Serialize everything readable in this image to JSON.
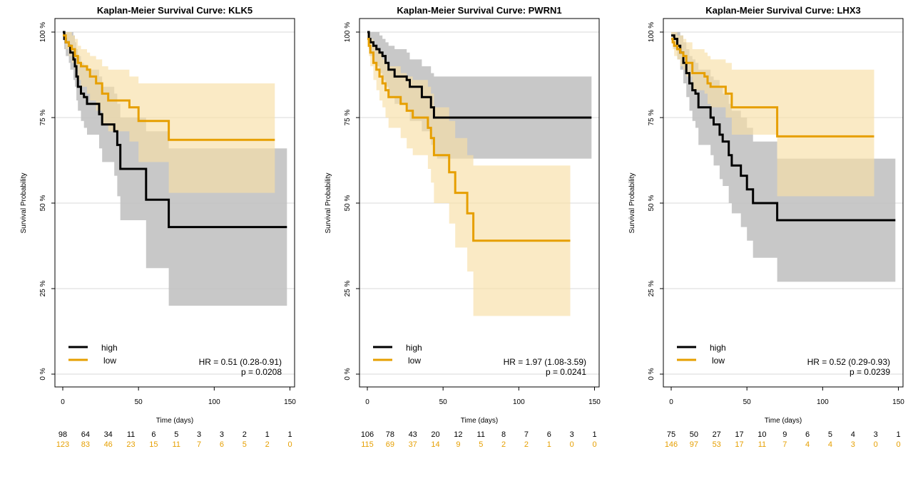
{
  "colors": {
    "high": "#000000",
    "low": "#E69F00",
    "high_band": "#BEBEBE",
    "low_band": "#F8DFA6",
    "grid": "#D9D9D9",
    "axis": "#000000"
  },
  "legend": {
    "high_label": "high",
    "low_label": "low"
  },
  "axis": {
    "xlabel": "Time (days)",
    "ylabel": "Survival Probability",
    "xlim": [
      0,
      150
    ],
    "x_ticks": [
      "0",
      "50",
      "100",
      "150"
    ],
    "y_ticks": [
      "0 %",
      "25 %",
      "50 %",
      "75 %",
      "100 %"
    ]
  },
  "risk_table": {
    "times": [
      0,
      15,
      30,
      45,
      60,
      75,
      90,
      105,
      120,
      135,
      150
    ]
  },
  "chart_data": [
    {
      "type": "line",
      "title": "Kaplan-Meier Survival Curve: KLK5",
      "xlabel": "Time (days)",
      "ylabel": "Survival Probability",
      "ylim": [
        0,
        100
      ],
      "series": [
        {
          "name": "high",
          "x": [
            0,
            1,
            2,
            4,
            5,
            7,
            8,
            9,
            10,
            12,
            14,
            16,
            18,
            24,
            26,
            30,
            34,
            36,
            38,
            55,
            70,
            148
          ],
          "y": [
            100,
            98,
            97,
            96,
            94,
            92,
            90,
            87,
            84,
            82,
            81,
            79,
            79,
            76,
            73,
            73,
            71,
            67,
            60,
            51,
            43,
            43
          ],
          "lower": [
            100,
            95,
            93,
            91,
            89,
            86,
            84,
            80,
            77,
            74,
            72,
            70,
            70,
            66,
            62,
            62,
            58,
            52,
            45,
            31,
            20,
            20
          ],
          "upper": [
            100,
            100,
            100,
            100,
            100,
            99,
            97,
            95,
            93,
            91,
            90,
            89,
            89,
            87,
            84,
            84,
            82,
            79,
            75,
            71,
            66,
            66
          ]
        },
        {
          "name": "low",
          "x": [
            0,
            2,
            4,
            6,
            8,
            10,
            12,
            16,
            18,
            22,
            26,
            30,
            36,
            44,
            50,
            66,
            70,
            140
          ],
          "y": [
            99,
            97,
            96,
            95,
            93,
            91,
            90,
            89,
            87,
            85,
            82,
            80,
            80,
            78,
            74,
            74,
            68.5,
            68.5
          ],
          "lower": [
            99,
            95,
            93,
            91,
            89,
            86,
            84,
            82,
            80,
            77,
            73,
            71,
            71,
            68,
            62,
            62,
            53,
            53
          ],
          "upper": [
            100,
            100,
            100,
            99,
            98,
            96,
            95,
            94,
            93,
            92,
            90,
            89,
            89,
            87,
            85,
            85,
            85,
            85
          ]
        }
      ],
      "hr_text": "HR = 0.51 (0.28-0.91)",
      "p_text": "p = 0.0208",
      "risk_high": [
        "98",
        "64",
        "34",
        "11",
        "6",
        "5",
        "3",
        "3",
        "2",
        "1",
        "1"
      ],
      "risk_low": [
        "123",
        "83",
        "46",
        "23",
        "15",
        "11",
        "7",
        "6",
        "5",
        "2",
        "0"
      ]
    },
    {
      "type": "line",
      "title": "Kaplan-Meier Survival Curve: PWRN1",
      "xlabel": "Time (days)",
      "ylabel": "Survival Probability",
      "ylim": [
        0,
        100
      ],
      "series": [
        {
          "name": "high",
          "x": [
            0,
            1,
            2,
            4,
            6,
            8,
            10,
            12,
            14,
            18,
            22,
            26,
            28,
            32,
            36,
            38,
            42,
            44,
            46,
            148
          ],
          "y": [
            100,
            98,
            97,
            96,
            95,
            94,
            93,
            91,
            89,
            87,
            87,
            86,
            84,
            84,
            81,
            81,
            78,
            75,
            75,
            75
          ],
          "lower": [
            100,
            95,
            93,
            91,
            90,
            88,
            86,
            84,
            81,
            79,
            79,
            77,
            74,
            74,
            71,
            71,
            67,
            64,
            63,
            63
          ],
          "upper": [
            100,
            100,
            100,
            100,
            100,
            99,
            98,
            97,
            96,
            95,
            95,
            94,
            92,
            92,
            90,
            90,
            88,
            87,
            87,
            87
          ]
        },
        {
          "name": "low",
          "x": [
            0,
            1,
            2,
            4,
            6,
            8,
            10,
            12,
            14,
            18,
            22,
            26,
            30,
            36,
            40,
            42,
            44,
            50,
            54,
            58,
            62,
            66,
            70,
            134
          ],
          "y": [
            98,
            96,
            94,
            91,
            89,
            87,
            85,
            83,
            81,
            81,
            79,
            77,
            75,
            75,
            72,
            69,
            64,
            64,
            59,
            53,
            53,
            47,
            39,
            39
          ],
          "lower": [
            98,
            93,
            90,
            86,
            83,
            80,
            78,
            75,
            72,
            72,
            69,
            66,
            64,
            64,
            60,
            56,
            50,
            50,
            44,
            37,
            37,
            30,
            17,
            17
          ],
          "upper": [
            100,
            99,
            98,
            96,
            95,
            94,
            92,
            91,
            90,
            90,
            88,
            87,
            86,
            86,
            84,
            82,
            78,
            78,
            74,
            69,
            69,
            64,
            61,
            61
          ]
        }
      ],
      "hr_text": "HR = 1.97 (1.08-3.59)",
      "p_text": "p = 0.0241",
      "risk_high": [
        "106",
        "78",
        "43",
        "20",
        "12",
        "11",
        "8",
        "7",
        "6",
        "3",
        "1"
      ],
      "risk_low": [
        "115",
        "69",
        "37",
        "14",
        "9",
        "5",
        "2",
        "2",
        "1",
        "0",
        "0"
      ]
    },
    {
      "type": "line",
      "title": "Kaplan-Meier Survival Curve: LHX3",
      "xlabel": "Time (days)",
      "ylabel": "Survival Probability",
      "ylim": [
        0,
        100
      ],
      "series": [
        {
          "name": "high",
          "x": [
            0,
            2,
            4,
            6,
            8,
            10,
            12,
            14,
            16,
            18,
            22,
            26,
            28,
            32,
            34,
            38,
            40,
            46,
            50,
            54,
            70,
            148
          ],
          "y": [
            99,
            98,
            96,
            94,
            91,
            88,
            85,
            83,
            82,
            78,
            78,
            75,
            73,
            70,
            68,
            64,
            61,
            58,
            54,
            50,
            45,
            45
          ],
          "lower": [
            99,
            95,
            92,
            89,
            85,
            81,
            77,
            74,
            72,
            67,
            67,
            64,
            61,
            57,
            55,
            50,
            47,
            43,
            39,
            34,
            27,
            27
          ],
          "upper": [
            100,
            100,
            100,
            99,
            97,
            95,
            93,
            92,
            91,
            89,
            89,
            87,
            86,
            84,
            82,
            79,
            77,
            75,
            72,
            68,
            63,
            63
          ]
        },
        {
          "name": "low",
          "x": [
            0,
            1,
            2,
            4,
            6,
            8,
            10,
            14,
            18,
            22,
            24,
            26,
            30,
            36,
            40,
            66,
            70,
            134
          ],
          "y": [
            98,
            97,
            96,
            95,
            94,
            93,
            91,
            88,
            88,
            87,
            85,
            84,
            84,
            82,
            78,
            78,
            69.5,
            69.5
          ],
          "lower": [
            98,
            95,
            93,
            92,
            90,
            89,
            87,
            83,
            83,
            82,
            79,
            78,
            78,
            75,
            70,
            70,
            52,
            52
          ],
          "upper": [
            100,
            100,
            100,
            99,
            99,
            98,
            97,
            95,
            95,
            94,
            93,
            92,
            92,
            91,
            89,
            89,
            89,
            89
          ]
        }
      ],
      "hr_text": "HR = 0.52 (0.29-0.93)",
      "p_text": "p = 0.0239",
      "risk_high": [
        "75",
        "50",
        "27",
        "17",
        "10",
        "9",
        "6",
        "5",
        "4",
        "3",
        "1"
      ],
      "risk_low": [
        "146",
        "97",
        "53",
        "17",
        "11",
        "7",
        "4",
        "4",
        "3",
        "0",
        "0"
      ]
    }
  ]
}
